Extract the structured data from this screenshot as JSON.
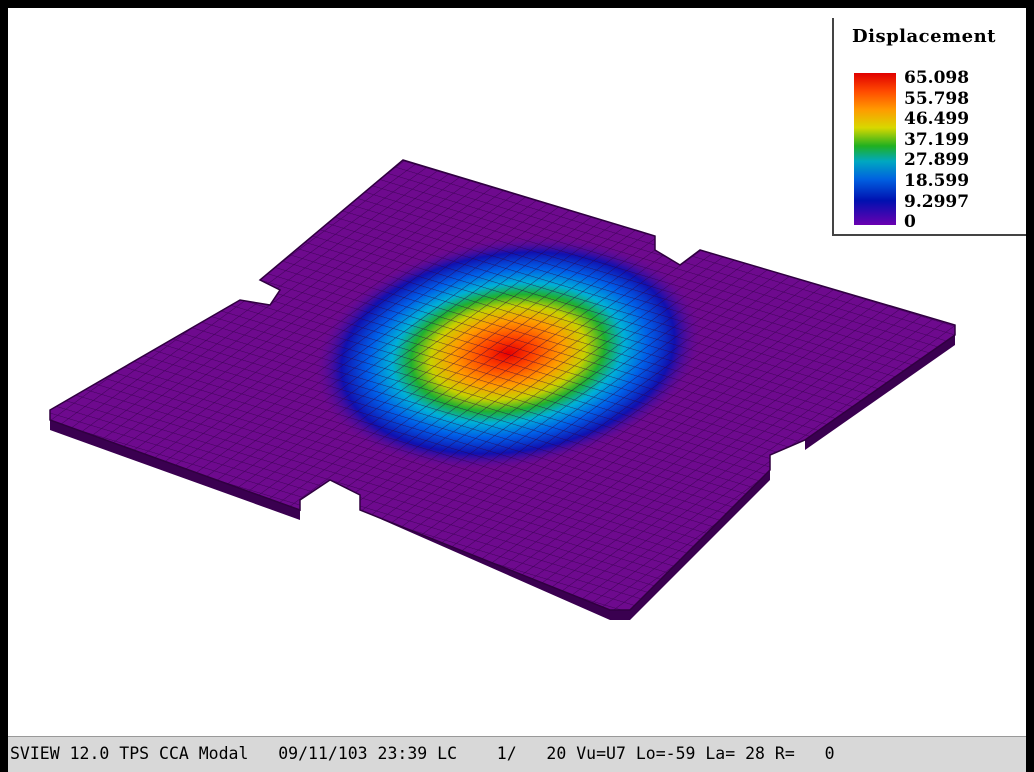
{
  "legend": {
    "title": "Displacement",
    "labels": [
      "65.098",
      "55.798",
      "46.499",
      "37.199",
      "27.899",
      "18.599",
      "9.2997",
      "0"
    ]
  },
  "status_bar": {
    "text": "SVIEW 12.0 TPS CCA Modal   09/11/103 23:39 LC    1/   20 Vu=U7 Lo=-59 La= 28 R=   0"
  }
}
